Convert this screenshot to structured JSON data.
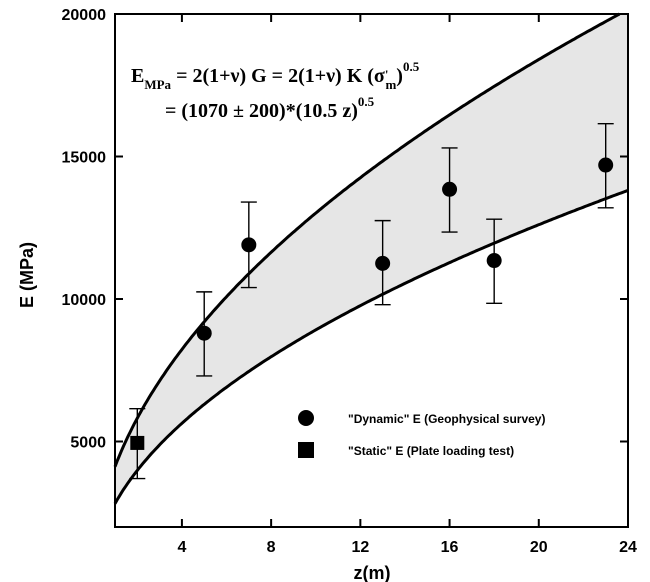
{
  "chart_data": {
    "type": "scatter",
    "xlabel": "z(m)",
    "ylabel": "E (MPa)",
    "xlim": [
      1,
      24
    ],
    "ylim": [
      2000,
      20000
    ],
    "x_ticks": [
      4,
      8,
      12,
      16,
      20,
      24
    ],
    "y_ticks": [
      5000,
      10000,
      15000,
      20000
    ],
    "x_tick_labels": [
      "4",
      "8",
      "12",
      "16",
      "20",
      "24"
    ],
    "y_tick_labels": [
      "5000",
      "10000",
      "15000",
      "20000"
    ],
    "grid": false,
    "legend_position": "bottom-right",
    "equation": {
      "line1": {
        "E": "E",
        "sub": "MPa",
        "mid": " = 2(1+ν) G = 2(1+ν) K (σ",
        "sigma_sup": "'",
        "sigma_sub": "m",
        "close": ")",
        "exp": "0.5"
      },
      "line2": {
        "text": "= (1070 ± 200)*(10.5 z)",
        "exp": "0.5"
      }
    },
    "band": {
      "name": "E = (1070 ± 200)*(10.5 z)^0.5",
      "upper_coef": 1270,
      "lower_coef": 870,
      "factor": 10.5,
      "exponent": 0.5,
      "fill_color": "#e6e6e6"
    },
    "series": [
      {
        "name": "\"Dynamic\" E  (Geophysical survey)",
        "marker": "circle",
        "points": [
          {
            "x": 5,
            "y": 8800,
            "err_low": 7300,
            "err_high": 10250
          },
          {
            "x": 7,
            "y": 11900,
            "err_low": 10400,
            "err_high": 13400
          },
          {
            "x": 13,
            "y": 11250,
            "err_low": 9800,
            "err_high": 12750
          },
          {
            "x": 16,
            "y": 13850,
            "err_low": 12350,
            "err_high": 15300
          },
          {
            "x": 18,
            "y": 11350,
            "err_low": 9850,
            "err_high": 12800
          },
          {
            "x": 23,
            "y": 14700,
            "err_low": 13200,
            "err_high": 16150
          }
        ]
      },
      {
        "name": "\"Static\" E  (Plate loading test)",
        "marker": "square",
        "points": [
          {
            "x": 2,
            "y": 4950,
            "err_low": 3700,
            "err_high": 6150
          }
        ]
      }
    ]
  }
}
